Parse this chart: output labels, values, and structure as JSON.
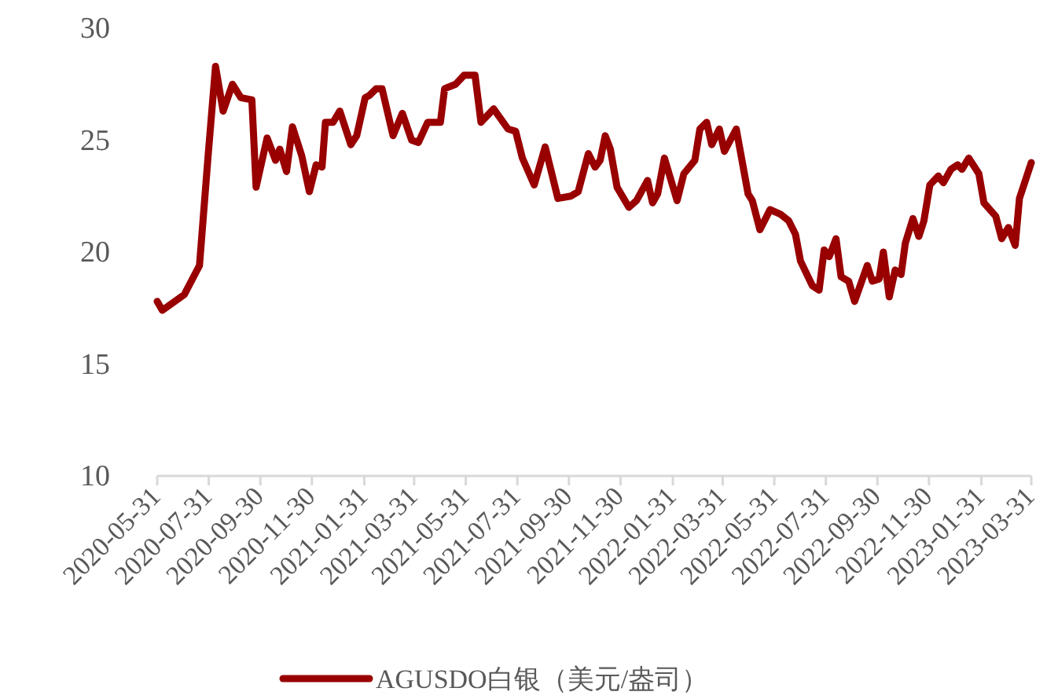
{
  "chart_data": {
    "type": "line",
    "legend": "bottom",
    "line_style": "solid",
    "xlim": [
      "2020-05-31",
      "2023-03-31"
    ],
    "xticks": [
      "2020-05-31",
      "2020-07-31",
      "2020-09-30",
      "2020-11-30",
      "2021-01-31",
      "2021-03-31",
      "2021-05-31",
      "2021-07-31",
      "2021-09-30",
      "2021-11-30",
      "2022-01-31",
      "2022-03-31",
      "2022-05-31",
      "2022-07-31",
      "2022-09-30",
      "2022-11-30",
      "2023-01-31",
      "2023-03-31"
    ],
    "ylim": [
      10,
      30
    ],
    "yticks": [
      10,
      15,
      20,
      25,
      30
    ],
    "x": [
      "2020-05-31",
      "2020-06-06",
      "2020-07-02",
      "2020-07-20",
      "2020-07-30",
      "2020-08-08",
      "2020-08-17",
      "2020-08-28",
      "2020-09-07",
      "2020-09-20",
      "2020-09-25",
      "2020-10-08",
      "2020-10-18",
      "2020-10-23",
      "2020-10-31",
      "2020-11-07",
      "2020-11-18",
      "2020-11-27",
      "2020-12-05",
      "2020-12-12",
      "2020-12-16",
      "2020-12-25",
      "2021-01-02",
      "2021-01-15",
      "2021-01-22",
      "2021-02-01",
      "2021-02-06",
      "2021-02-14",
      "2021-02-21",
      "2021-03-06",
      "2021-03-17",
      "2021-03-28",
      "2021-04-05",
      "2021-04-16",
      "2021-05-01",
      "2021-05-06",
      "2021-05-19",
      "2021-05-29",
      "2021-06-11",
      "2021-06-18",
      "2021-07-03",
      "2021-07-20",
      "2021-07-29",
      "2021-08-06",
      "2021-08-20",
      "2021-09-02",
      "2021-09-17",
      "2021-10-02",
      "2021-10-11",
      "2021-10-23",
      "2021-10-31",
      "2021-11-06",
      "2021-11-12",
      "2021-11-18",
      "2021-11-26",
      "2021-12-10",
      "2021-12-19",
      "2022-01-01",
      "2022-01-07",
      "2022-01-13",
      "2022-01-21",
      "2022-02-05",
      "2022-02-13",
      "2022-02-26",
      "2022-03-04",
      "2022-03-12",
      "2022-03-18",
      "2022-03-27",
      "2022-04-02",
      "2022-04-16",
      "2022-04-30",
      "2022-05-05",
      "2022-05-14",
      "2022-05-26",
      "2022-06-07",
      "2022-06-17",
      "2022-06-25",
      "2022-07-01",
      "2022-07-15",
      "2022-07-23",
      "2022-07-29",
      "2022-08-04",
      "2022-08-12",
      "2022-08-18",
      "2022-08-27",
      "2022-09-03",
      "2022-09-18",
      "2022-09-24",
      "2022-10-02",
      "2022-10-07",
      "2022-10-14",
      "2022-10-21",
      "2022-10-28",
      "2022-11-02",
      "2022-11-11",
      "2022-11-18",
      "2022-11-24",
      "2022-12-01",
      "2022-12-11",
      "2022-12-17",
      "2022-12-26",
      "2023-01-03",
      "2023-01-08",
      "2023-01-16",
      "2023-01-28",
      "2023-02-03",
      "2023-02-17",
      "2023-02-24",
      "2023-03-04",
      "2023-03-12",
      "2023-03-17",
      "2023-03-31"
    ],
    "series": [
      {
        "name": "AGUSDO白银（美元/盎司）",
        "color": "#990000",
        "values": [
          17.8,
          17.4,
          18.1,
          19.4,
          24.2,
          28.3,
          26.3,
          27.5,
          26.9,
          26.8,
          22.9,
          25.1,
          24.1,
          24.6,
          23.6,
          25.6,
          24.3,
          22.7,
          23.9,
          23.8,
          25.8,
          25.8,
          26.3,
          24.8,
          25.2,
          26.9,
          27.0,
          27.3,
          27.3,
          25.2,
          26.2,
          25.0,
          24.9,
          25.8,
          25.8,
          27.3,
          27.5,
          27.9,
          27.9,
          25.8,
          26.4,
          25.5,
          25.4,
          24.2,
          23.0,
          24.7,
          22.4,
          22.5,
          22.7,
          24.4,
          23.8,
          24.1,
          25.2,
          24.6,
          22.9,
          22.0,
          22.3,
          23.2,
          22.2,
          22.6,
          24.2,
          22.3,
          23.5,
          24.1,
          25.5,
          25.8,
          24.8,
          25.5,
          24.5,
          25.5,
          22.6,
          22.3,
          21.0,
          21.9,
          21.7,
          21.4,
          20.8,
          19.6,
          18.5,
          18.3,
          20.1,
          19.8,
          20.6,
          18.9,
          18.7,
          17.8,
          19.4,
          18.7,
          18.8,
          20.0,
          18.0,
          19.2,
          19.0,
          20.4,
          21.5,
          20.7,
          21.4,
          23.0,
          23.4,
          23.1,
          23.7,
          23.9,
          23.7,
          24.2,
          23.5,
          22.2,
          21.6,
          20.6,
          21.1,
          20.3,
          22.4,
          24.0
        ]
      }
    ]
  }
}
